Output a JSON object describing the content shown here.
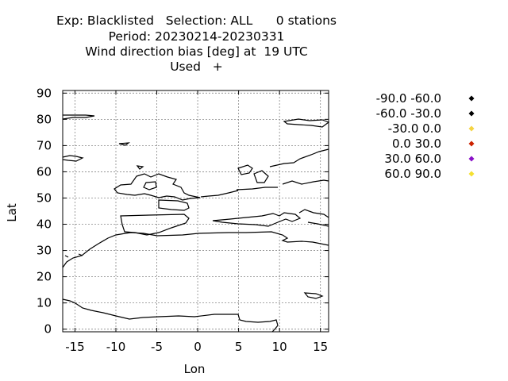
{
  "title": {
    "line1": "Exp: Blacklisted   Selection: ALL      0 stations",
    "line2": "Period: 20230214-20230331",
    "line3": "Wind direction bias [deg] at  19 UTC",
    "line4": "Used   +"
  },
  "chart_data": {
    "type": "scatter",
    "title": "Wind direction bias [deg] at  19 UTC",
    "xlabel": "Lon",
    "ylabel": "Lat",
    "xlim": [
      -16.5,
      16
    ],
    "ylim": [
      -1,
      91
    ],
    "xticks": [
      -15,
      -10,
      -5,
      0,
      5,
      10,
      15
    ],
    "yticks": [
      0,
      10,
      20,
      30,
      40,
      50,
      60,
      70,
      80,
      90
    ],
    "grid": true,
    "legend_position": "right",
    "series": [
      {
        "name": "-90.0 -60.0",
        "color": "#000000",
        "points": []
      },
      {
        "name": "-60.0 -30.0",
        "color": "#000000",
        "points": []
      },
      {
        "name": "-30.0 0.0",
        "color": "#f5d442",
        "points": []
      },
      {
        "name": "0.0 30.0",
        "color": "#cc2200",
        "points": []
      },
      {
        "name": "30.0 60.0",
        "color": "#8a10c8",
        "points": []
      },
      {
        "name": "60.0 90.0",
        "color": "#f5e030",
        "points": []
      }
    ],
    "station_count": 0
  }
}
